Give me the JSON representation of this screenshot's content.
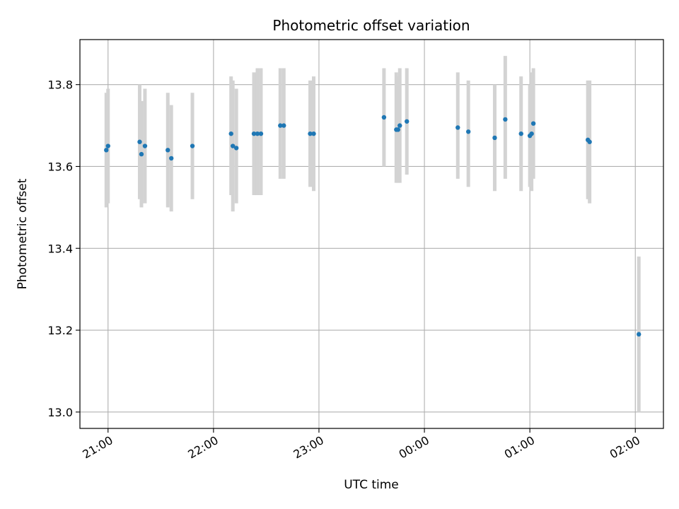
{
  "chart_data": {
    "type": "scatter",
    "title": "Photometric offset variation",
    "xlabel": "UTC time",
    "ylabel": "Photometric offset",
    "x_unit": "UTC clock time (hours, continuing past midnight)",
    "xlim": [
      "20:44",
      "02:16"
    ],
    "ylim": [
      12.96,
      13.91
    ],
    "grid": true,
    "x_ticks": [
      "21:00",
      "22:00",
      "23:00",
      "00:00",
      "01:00",
      "02:00"
    ],
    "y_ticks": [
      "13.0",
      "13.2",
      "13.4",
      "13.6",
      "13.8"
    ],
    "colors": {
      "point": "#1f77b4",
      "errorbar": "#d3d3d3",
      "grid": "#b0b0b0"
    },
    "series": [
      {
        "points": [
          {
            "x": "20:59",
            "y": 13.64,
            "yerr": [
              13.5,
              13.78
            ]
          },
          {
            "x": "21:00",
            "y": 13.65,
            "yerr": [
              13.51,
              13.79
            ]
          },
          {
            "x": "21:18",
            "y": 13.66,
            "yerr": [
              13.52,
              13.8
            ]
          },
          {
            "x": "21:19",
            "y": 13.63,
            "yerr": [
              13.5,
              13.76
            ]
          },
          {
            "x": "21:21",
            "y": 13.65,
            "yerr": [
              13.51,
              13.79
            ]
          },
          {
            "x": "21:34",
            "y": 13.64,
            "yerr": [
              13.5,
              13.78
            ]
          },
          {
            "x": "21:36",
            "y": 13.62,
            "yerr": [
              13.49,
              13.75
            ]
          },
          {
            "x": "21:48",
            "y": 13.65,
            "yerr": [
              13.52,
              13.78
            ]
          },
          {
            "x": "22:10",
            "y": 13.68,
            "yerr": [
              13.53,
              13.82
            ]
          },
          {
            "x": "22:11",
            "y": 13.65,
            "yerr": [
              13.49,
              13.81
            ]
          },
          {
            "x": "22:13",
            "y": 13.645,
            "yerr": [
              13.51,
              13.79
            ]
          },
          {
            "x": "22:23",
            "y": 13.68,
            "yerr": [
              13.53,
              13.83
            ]
          },
          {
            "x": "22:25",
            "y": 13.68,
            "yerr": [
              13.53,
              13.84
            ]
          },
          {
            "x": "22:27",
            "y": 13.68,
            "yerr": [
              13.53,
              13.84
            ]
          },
          {
            "x": "22:38",
            "y": 13.7,
            "yerr": [
              13.57,
              13.84
            ]
          },
          {
            "x": "22:40",
            "y": 13.7,
            "yerr": [
              13.57,
              13.84
            ]
          },
          {
            "x": "22:55",
            "y": 13.68,
            "yerr": [
              13.55,
              13.81
            ]
          },
          {
            "x": "22:57",
            "y": 13.68,
            "yerr": [
              13.54,
              13.82
            ]
          },
          {
            "x": "23:37",
            "y": 13.72,
            "yerr": [
              13.6,
              13.84
            ]
          },
          {
            "x": "23:44",
            "y": 13.69,
            "yerr": [
              13.56,
              13.83
            ]
          },
          {
            "x": "23:45",
            "y": 13.69,
            "yerr": [
              13.56,
              13.82
            ]
          },
          {
            "x": "23:46",
            "y": 13.7,
            "yerr": [
              13.56,
              13.84
            ]
          },
          {
            "x": "23:50",
            "y": 13.71,
            "yerr": [
              13.58,
              13.84
            ]
          },
          {
            "x": "00:19",
            "y": 13.695,
            "yerr": [
              13.57,
              13.83
            ]
          },
          {
            "x": "00:25",
            "y": 13.685,
            "yerr": [
              13.55,
              13.81
            ]
          },
          {
            "x": "00:40",
            "y": 13.67,
            "yerr": [
              13.54,
              13.8
            ]
          },
          {
            "x": "00:46",
            "y": 13.715,
            "yerr": [
              13.57,
              13.87
            ]
          },
          {
            "x": "00:55",
            "y": 13.68,
            "yerr": [
              13.54,
              13.82
            ]
          },
          {
            "x": "01:00",
            "y": 13.675,
            "yerr": [
              13.55,
              13.8
            ]
          },
          {
            "x": "01:01",
            "y": 13.68,
            "yerr": [
              13.54,
              13.83
            ]
          },
          {
            "x": "01:02",
            "y": 13.705,
            "yerr": [
              13.57,
              13.84
            ]
          },
          {
            "x": "01:33",
            "y": 13.665,
            "yerr": [
              13.52,
              13.81
            ]
          },
          {
            "x": "01:34",
            "y": 13.66,
            "yerr": [
              13.51,
              13.81
            ]
          },
          {
            "x": "02:02",
            "y": 13.19,
            "yerr": [
              13.0,
              13.38
            ]
          }
        ]
      }
    ]
  }
}
